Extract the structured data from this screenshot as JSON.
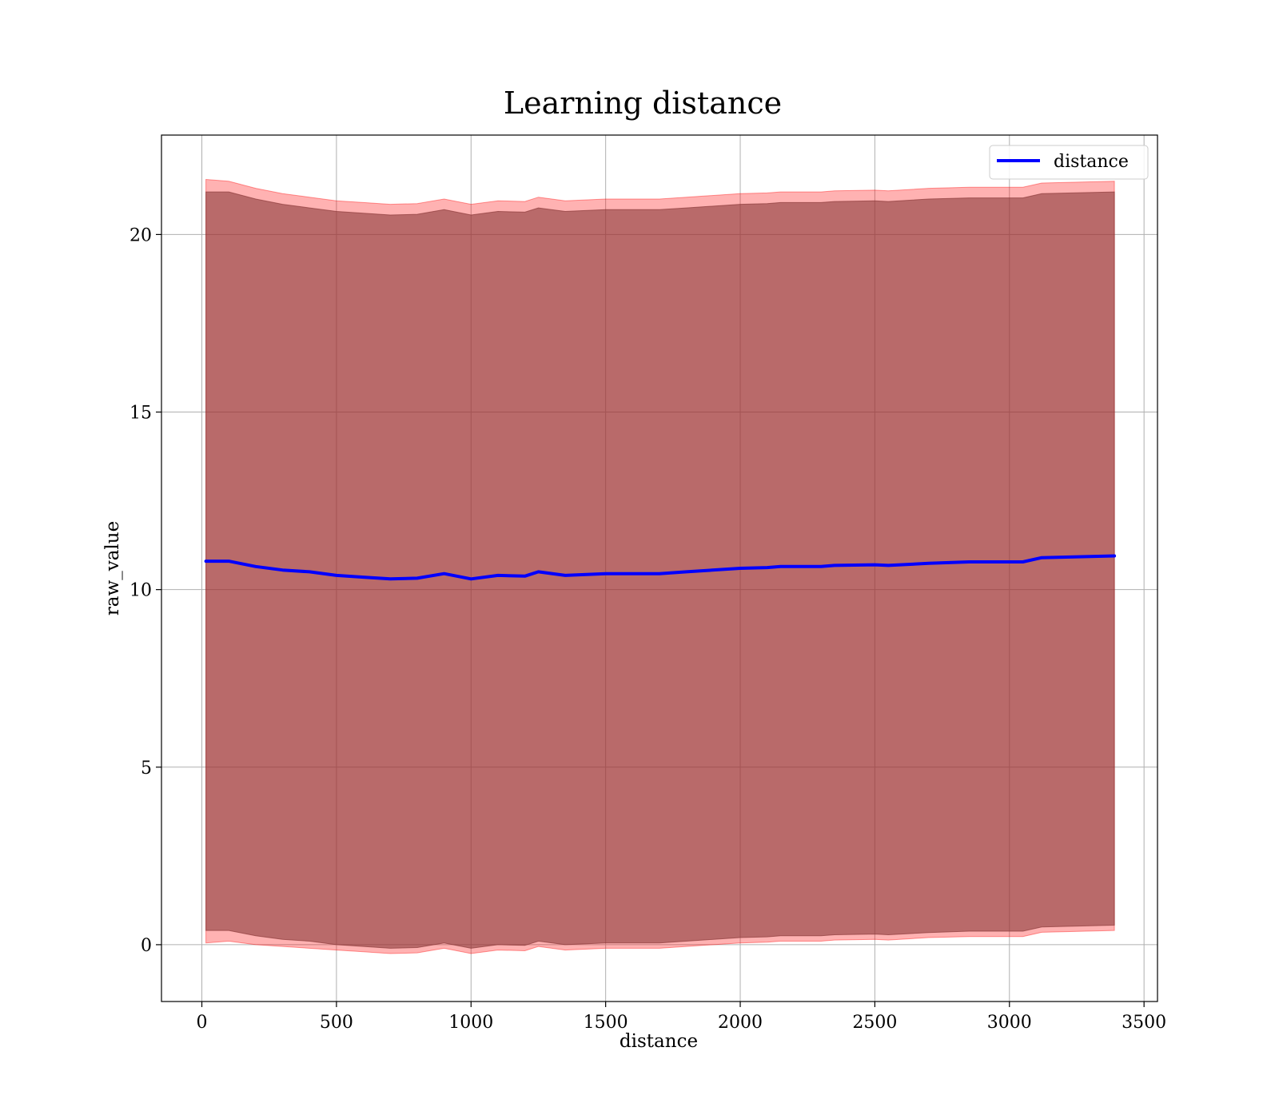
{
  "chart_data": {
    "type": "area",
    "title": "Learning distance",
    "xlabel": "distance",
    "ylabel": "raw_value",
    "xlim": [
      -150,
      3550
    ],
    "ylim": [
      -1.6,
      22.8
    ],
    "x_ticks": [
      0,
      500,
      1000,
      1500,
      2000,
      2500,
      3000,
      3500
    ],
    "y_ticks": [
      0,
      5,
      10,
      15,
      20
    ],
    "x_tick_labels": [
      "0",
      "500",
      "1000",
      "1500",
      "2000",
      "2500",
      "3000",
      "3500"
    ],
    "y_tick_labels": [
      "0",
      "5",
      "10",
      "15",
      "20"
    ],
    "grid": true,
    "legend": {
      "position": "top-right",
      "entries": [
        {
          "label": "distance",
          "color": "#0000ff"
        }
      ]
    },
    "x": [
      15,
      100,
      200,
      300,
      400,
      500,
      600,
      700,
      800,
      900,
      1000,
      1100,
      1200,
      1250,
      1350,
      1500,
      1700,
      1800,
      2000,
      2100,
      2150,
      2300,
      2350,
      2500,
      2550,
      2700,
      2850,
      3050,
      3120,
      3390
    ],
    "series": [
      {
        "name": "distance",
        "color": "#0000ff",
        "values": [
          10.8,
          10.8,
          10.65,
          10.55,
          10.5,
          10.4,
          10.35,
          10.3,
          10.32,
          10.45,
          10.3,
          10.4,
          10.38,
          10.5,
          10.4,
          10.45,
          10.45,
          10.5,
          10.6,
          10.62,
          10.65,
          10.65,
          10.68,
          10.7,
          10.68,
          10.74,
          10.78,
          10.78,
          10.9,
          10.95
        ]
      }
    ],
    "bands": [
      {
        "color": "#ff0000",
        "opacity": 0.3,
        "upper": [
          21.55,
          21.5,
          21.3,
          21.15,
          21.05,
          20.95,
          20.9,
          20.85,
          20.87,
          21.0,
          20.85,
          20.95,
          20.93,
          21.05,
          20.95,
          21.0,
          21.0,
          21.05,
          21.15,
          21.17,
          21.2,
          21.2,
          21.23,
          21.25,
          21.23,
          21.3,
          21.33,
          21.33,
          21.45,
          21.5
        ],
        "lower": [
          0.05,
          0.1,
          0.0,
          -0.05,
          -0.1,
          -0.15,
          -0.2,
          -0.25,
          -0.23,
          -0.1,
          -0.25,
          -0.15,
          -0.17,
          -0.05,
          -0.15,
          -0.1,
          -0.1,
          -0.05,
          0.05,
          0.07,
          0.1,
          0.1,
          0.13,
          0.15,
          0.13,
          0.2,
          0.23,
          0.23,
          0.35,
          0.4
        ]
      },
      {
        "color": "#8b3a3a",
        "opacity": 0.6,
        "upper": [
          21.2,
          21.2,
          21.0,
          20.85,
          20.75,
          20.65,
          20.6,
          20.55,
          20.57,
          20.7,
          20.55,
          20.65,
          20.63,
          20.75,
          20.65,
          20.7,
          20.7,
          20.75,
          20.85,
          20.87,
          20.9,
          20.9,
          20.93,
          20.95,
          20.93,
          21.0,
          21.03,
          21.03,
          21.15,
          21.2
        ],
        "lower": [
          0.4,
          0.4,
          0.25,
          0.15,
          0.1,
          0.0,
          -0.05,
          -0.1,
          -0.08,
          0.05,
          -0.1,
          0.0,
          -0.02,
          0.1,
          0.0,
          0.05,
          0.05,
          0.1,
          0.2,
          0.22,
          0.25,
          0.25,
          0.28,
          0.3,
          0.28,
          0.34,
          0.38,
          0.38,
          0.5,
          0.55
        ]
      }
    ]
  }
}
